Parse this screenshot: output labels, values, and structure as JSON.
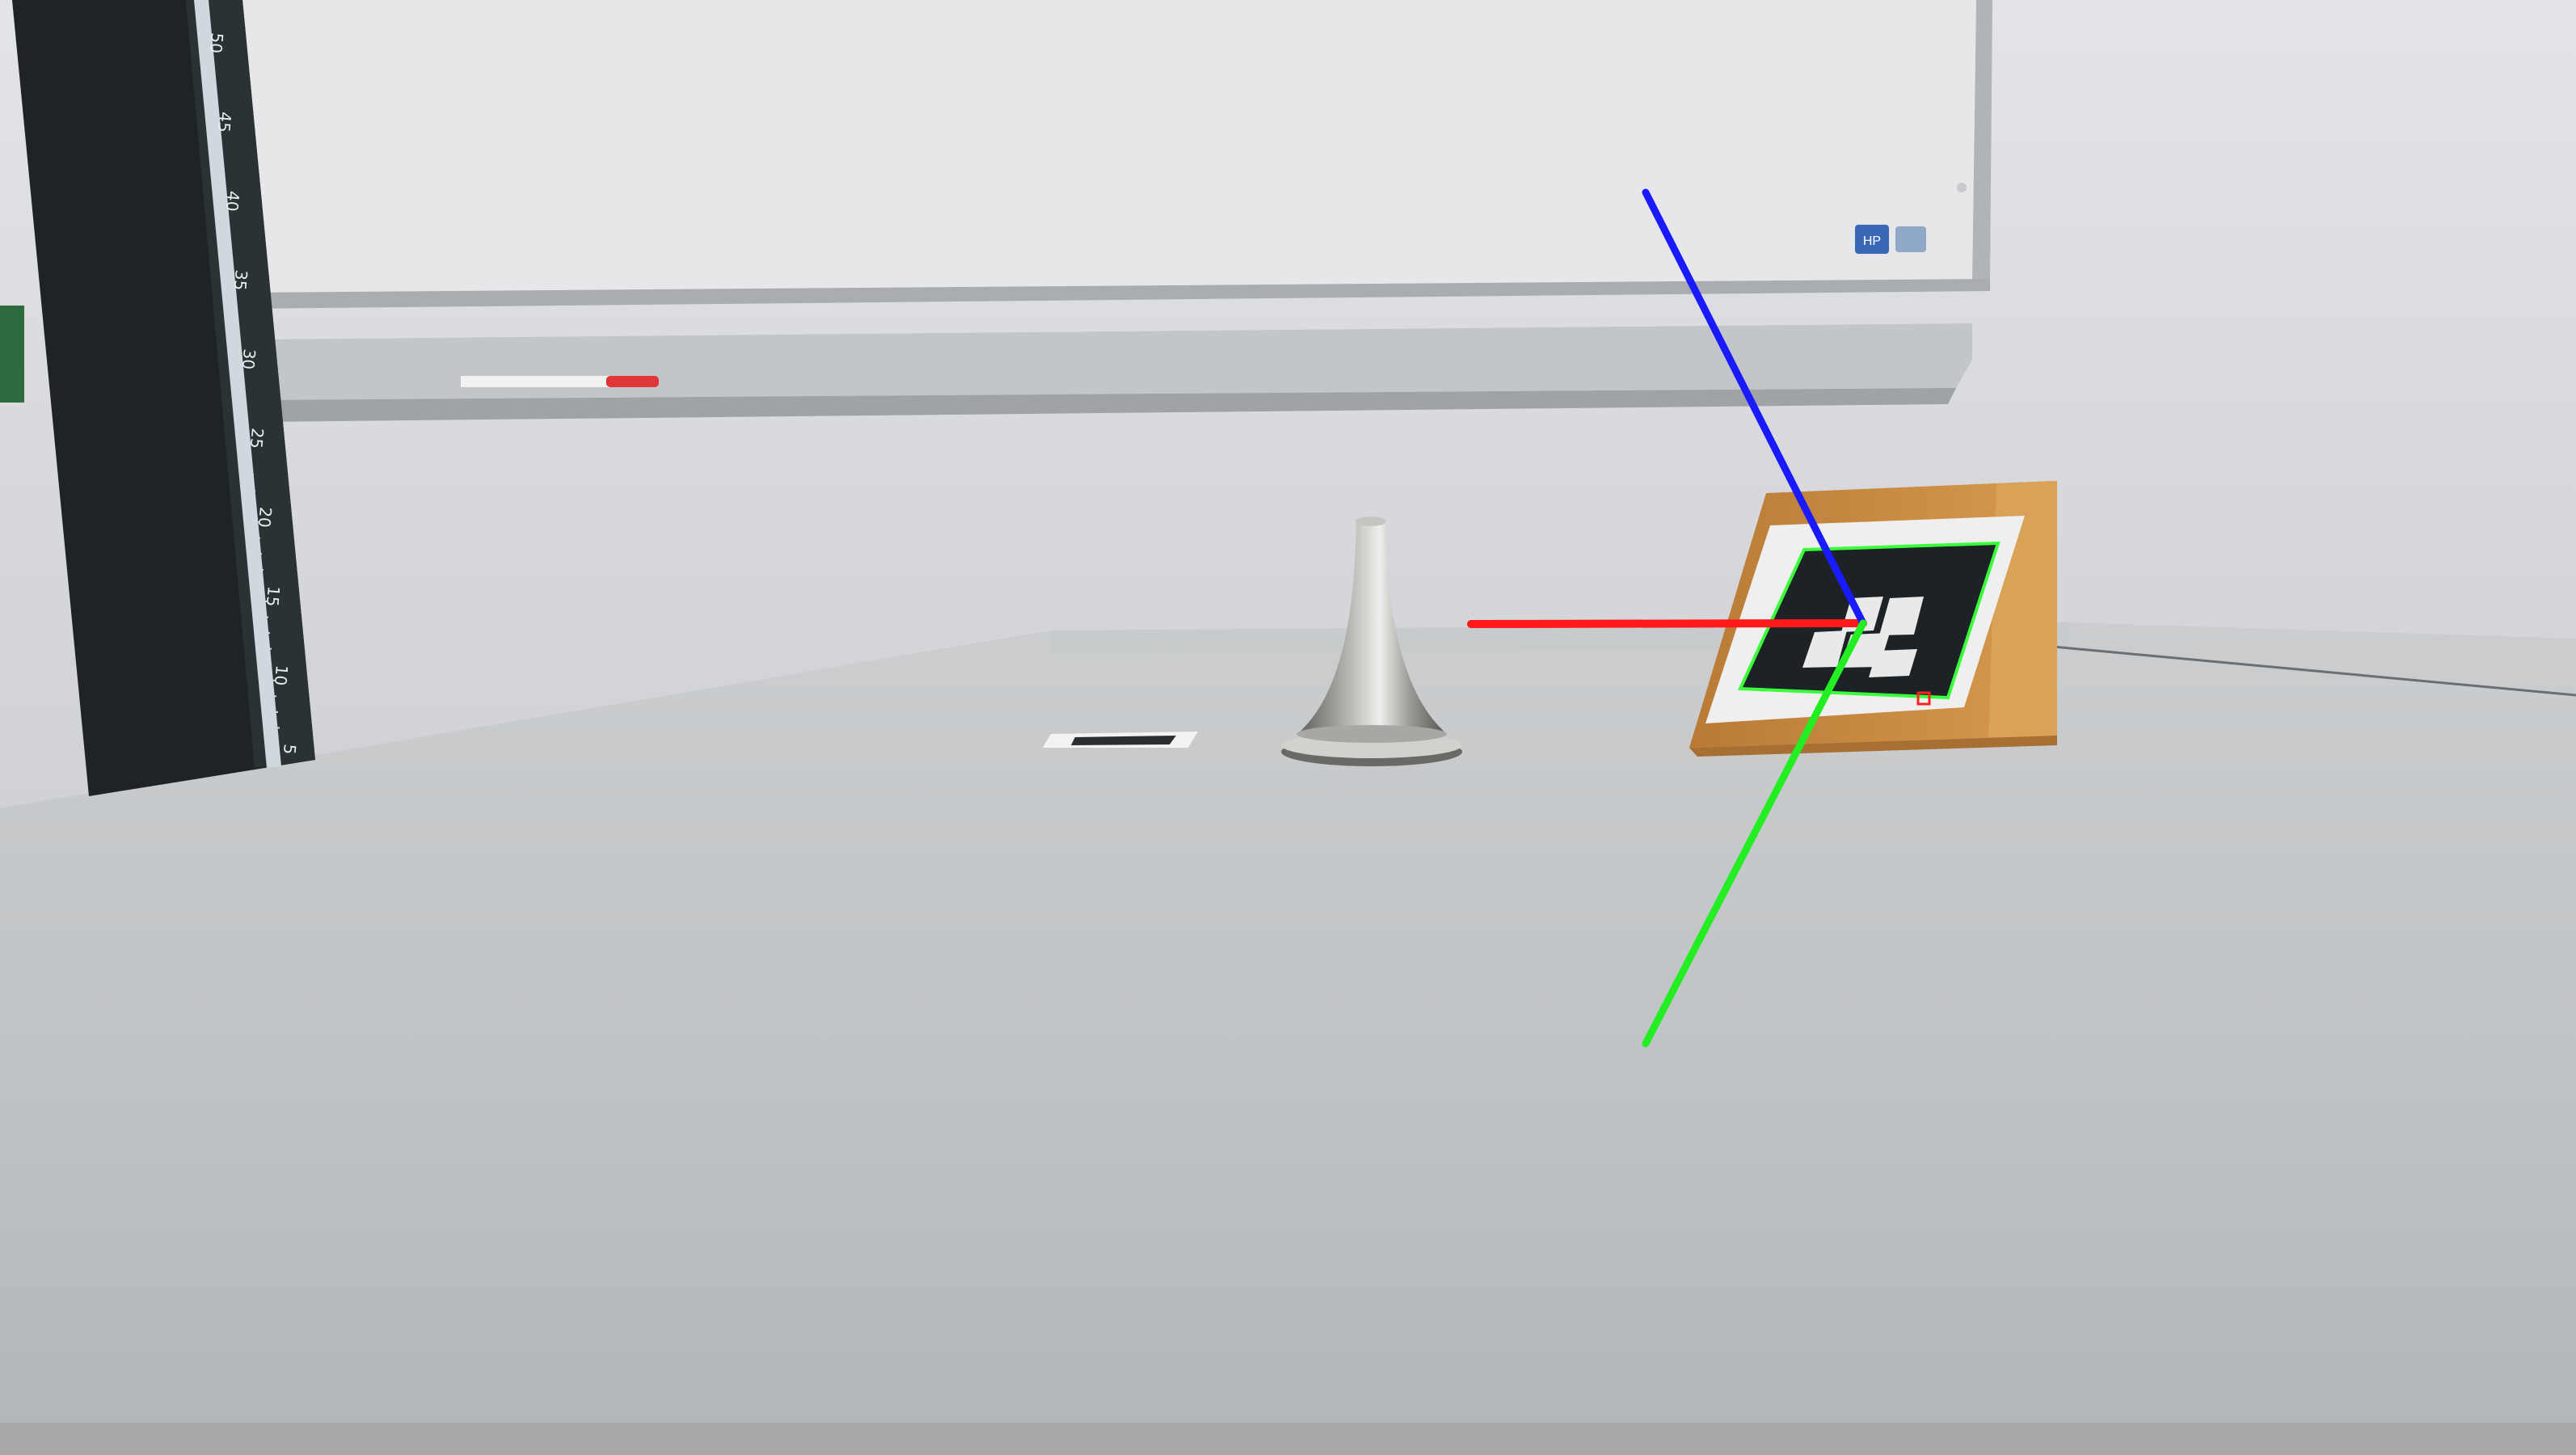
{
  "scene": {
    "description_free": true,
    "colors": {
      "wall": "#dadbdf",
      "wall_lower": "#cfd0d4",
      "table": "#c3c6c8",
      "table_near": "#b3b6b8",
      "whiteboard": "#e6e6e8",
      "whiteboard_frame": "#a7aaae",
      "rail": "#b7babd",
      "post": "#1f2527",
      "post_scale": "#cfd8dc",
      "cone": "#8b8985",
      "stand_wood": "#c98a3e",
      "marker_black": "#1c2226",
      "marker_white": "#eeeeee",
      "axis_x": "#ff1a1a",
      "axis_y": "#22ee22",
      "axis_z": "#1a1aff",
      "detection_outline": "#3cff3c",
      "corner_mark": "#ff2020"
    },
    "icons": {
      "post": "measuring-post-icon",
      "cone": "metal-cone-object",
      "marker": "aruco-marker",
      "stand": "wooden-wedge-stand",
      "axes": "pose-axes-overlay"
    },
    "ruler_ticks": [
      "50",
      "45",
      "40",
      "35",
      "30",
      "25",
      "20",
      "15",
      "10",
      "5"
    ],
    "whiteboard_sticker": "HP"
  }
}
